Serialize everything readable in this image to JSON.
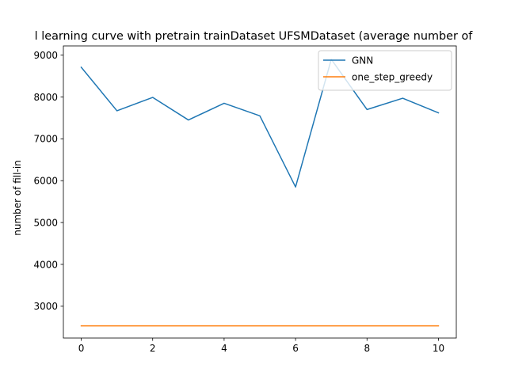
{
  "chart_data": {
    "type": "line",
    "title": "l learning curve with pretrain trainDataset UFSMDataset (average number of",
    "xlabel": "",
    "ylabel": "number of fill-in",
    "xlim": [
      -0.5,
      10.5
    ],
    "ylim": [
      2240,
      9220
    ],
    "x_ticks": [
      0,
      2,
      4,
      6,
      8,
      10
    ],
    "y_ticks": [
      3000,
      4000,
      5000,
      6000,
      7000,
      8000,
      9000
    ],
    "grid": false,
    "legend_position": "top-right",
    "x": [
      0,
      1,
      2,
      3,
      4,
      5,
      6,
      7,
      8,
      9,
      10
    ],
    "series": [
      {
        "name": "GNN",
        "color": "#1f77b4",
        "values": [
          8710,
          7670,
          7990,
          7450,
          7850,
          7550,
          5850,
          8900,
          7700,
          7970,
          7620
        ]
      },
      {
        "name": "one_step_greedy",
        "color": "#ff7f0e",
        "values": [
          2530,
          2530,
          2530,
          2530,
          2530,
          2530,
          2530,
          2530,
          2530,
          2530,
          2530
        ]
      }
    ]
  }
}
